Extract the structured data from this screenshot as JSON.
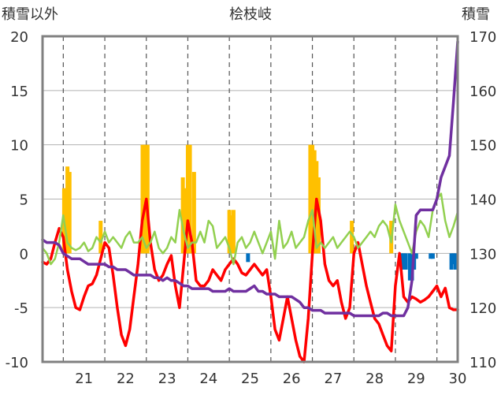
{
  "chart_data": {
    "type": "line",
    "title": "桧枝岐",
    "left_axis_label": "積雪以外",
    "right_axis_label": "積雪",
    "x_range": [
      20.5,
      30.5
    ],
    "x_ticks": [
      "21",
      "22",
      "23",
      "24",
      "25",
      "26",
      "27",
      "28",
      "29",
      "30"
    ],
    "y_left_range": [
      -10,
      20
    ],
    "y_left_ticks": [
      "20",
      "15",
      "10",
      "5",
      "0",
      "-5",
      "-10"
    ],
    "y_right_range": [
      110,
      170
    ],
    "y_right_ticks": [
      "170",
      "160",
      "150",
      "140",
      "130",
      "120",
      "110"
    ],
    "grid": true,
    "colors": {
      "red": "#ff0000",
      "green": "#92d050",
      "purple": "#7030a0",
      "orange": "#ffc000",
      "blue": "#0070c0"
    },
    "series": [
      {
        "color": "red",
        "axis": "left",
        "x": [
          20.5,
          20.6,
          20.7,
          20.8,
          20.9,
          21.0,
          21.1,
          21.2,
          21.3,
          21.4,
          21.5,
          21.6,
          21.7,
          21.8,
          21.9,
          22.0,
          22.1,
          22.2,
          22.3,
          22.4,
          22.5,
          22.6,
          22.7,
          22.8,
          22.9,
          23.0,
          23.1,
          23.2,
          23.3,
          23.4,
          23.5,
          23.6,
          23.7,
          23.8,
          23.9,
          24.0,
          24.1,
          24.2,
          24.3,
          24.4,
          24.5,
          24.6,
          24.7,
          24.8,
          24.9,
          25.0,
          25.1,
          25.2,
          25.3,
          25.4,
          25.5,
          25.6,
          25.7,
          25.8,
          25.9,
          26.0,
          26.1,
          26.2,
          26.3,
          26.4,
          26.5,
          26.6,
          26.7,
          26.8,
          26.9,
          27.0,
          27.1,
          27.2,
          27.3,
          27.4,
          27.5,
          27.6,
          27.7,
          27.8,
          27.9,
          28.0,
          28.1,
          28.2,
          28.3,
          28.4,
          28.5,
          28.6,
          28.7,
          28.8,
          28.9,
          29.0,
          29.1,
          29.2,
          29.3,
          29.4,
          29.5,
          29.6,
          29.7,
          29.8,
          29.9,
          30.0,
          30.1,
          30.2,
          30.3,
          30.4,
          30.5
        ],
        "y": [
          -0.8,
          -1,
          -0.5,
          1,
          2.3,
          1.5,
          -1.5,
          -3.5,
          -5,
          -5.2,
          -4,
          -3,
          -2.8,
          -2,
          -0.5,
          1,
          0.5,
          -2,
          -5,
          -7.5,
          -8.5,
          -7,
          -4,
          -1,
          3,
          5,
          1,
          -1.5,
          -2.5,
          -2,
          -1,
          -0.2,
          -3,
          -5,
          -1,
          3,
          1,
          -2.5,
          -3,
          -3,
          -2.5,
          -1.5,
          -2,
          -2.5,
          -1.5,
          -1,
          -0.5,
          -1,
          -1.8,
          -2,
          -1.5,
          -1,
          -1.5,
          -2,
          -1.5,
          -4,
          -7,
          -8,
          -6,
          -4,
          -6,
          -8,
          -9.5,
          -10,
          -6,
          0,
          5,
          3,
          -1,
          -2.5,
          -3,
          -2.5,
          -4.5,
          -6,
          -5,
          0,
          1,
          -1,
          -3,
          -4.5,
          -6,
          -6.5,
          -7.5,
          -8.5,
          -9,
          -3,
          0,
          -4,
          -4.5,
          -4,
          -4.2,
          -4.5,
          -4.3,
          -4,
          -3.5,
          -3,
          -4,
          -3.2,
          -5,
          -5.2,
          -5.2
        ]
      },
      {
        "color": "green",
        "axis": "left",
        "x": [
          20.5,
          20.6,
          20.7,
          20.8,
          20.9,
          21.0,
          21.1,
          21.2,
          21.3,
          21.4,
          21.5,
          21.6,
          21.7,
          21.8,
          21.9,
          22.0,
          22.1,
          22.2,
          22.3,
          22.4,
          22.5,
          22.6,
          22.7,
          22.8,
          22.9,
          23.0,
          23.1,
          23.2,
          23.3,
          23.4,
          23.5,
          23.6,
          23.7,
          23.8,
          23.9,
          24.0,
          24.1,
          24.2,
          24.3,
          24.4,
          24.5,
          24.6,
          24.7,
          24.8,
          24.9,
          25.0,
          25.1,
          25.2,
          25.3,
          25.4,
          25.5,
          25.6,
          25.7,
          25.8,
          25.9,
          26.0,
          26.1,
          26.2,
          26.3,
          26.4,
          26.5,
          26.6,
          26.7,
          26.8,
          26.9,
          27.0,
          27.1,
          27.2,
          27.3,
          27.4,
          27.5,
          27.6,
          27.7,
          27.8,
          27.9,
          28.0,
          28.1,
          28.2,
          28.3,
          28.4,
          28.5,
          28.6,
          28.7,
          28.8,
          28.9,
          29.0,
          29.1,
          29.2,
          29.3,
          29.4,
          29.5,
          29.6,
          29.7,
          29.8,
          29.9,
          30.0,
          30.1,
          30.2,
          30.3,
          30.4,
          30.5
        ],
        "y": [
          0.5,
          0,
          -1,
          -0.5,
          1,
          3.5,
          1,
          0.5,
          0.3,
          0.5,
          1,
          0.2,
          0.5,
          1.5,
          1,
          2,
          1,
          1.5,
          1,
          0.5,
          1.5,
          2,
          1,
          1,
          1.5,
          0.5,
          1,
          2,
          0.5,
          0,
          0.5,
          1.5,
          1,
          4,
          2,
          0.5,
          1,
          1,
          2,
          1,
          3,
          2.5,
          0.5,
          1,
          1.5,
          0.5,
          -1,
          1,
          1.5,
          0.5,
          1,
          2,
          1,
          0,
          1,
          2,
          -0.5,
          3,
          0.5,
          1,
          2,
          0.5,
          1,
          1.5,
          3,
          4,
          0.5,
          1,
          0.5,
          1,
          1.5,
          0.5,
          1,
          1.5,
          2,
          1.5,
          0.5,
          1,
          1.5,
          2,
          1.5,
          2.5,
          3,
          2.5,
          1,
          4.5,
          3,
          2,
          1,
          0,
          2,
          3,
          2.5,
          1.5,
          4,
          5,
          5.5,
          3,
          1.5,
          2.5,
          3.8
        ]
      },
      {
        "color": "purple",
        "axis": "right",
        "x": [
          20.5,
          20.6,
          20.7,
          20.8,
          20.9,
          21.0,
          21.1,
          21.2,
          21.3,
          21.4,
          21.5,
          21.6,
          21.7,
          21.8,
          21.9,
          22.0,
          22.1,
          22.2,
          22.3,
          22.4,
          22.5,
          22.6,
          22.7,
          22.8,
          22.9,
          23.0,
          23.1,
          23.2,
          23.3,
          23.4,
          23.5,
          23.6,
          23.7,
          23.8,
          23.9,
          24.0,
          24.1,
          24.2,
          24.3,
          24.4,
          24.5,
          24.6,
          24.7,
          24.8,
          24.9,
          25.0,
          25.1,
          25.2,
          25.3,
          25.4,
          25.5,
          25.6,
          25.7,
          25.8,
          25.9,
          26.0,
          26.1,
          26.2,
          26.3,
          26.4,
          26.5,
          26.6,
          26.7,
          26.8,
          26.9,
          27.0,
          27.1,
          27.2,
          27.3,
          27.4,
          27.5,
          27.6,
          27.7,
          27.8,
          27.9,
          28.0,
          28.1,
          28.2,
          28.3,
          28.4,
          28.5,
          28.6,
          28.7,
          28.8,
          28.9,
          29.0,
          29.1,
          29.2,
          29.3,
          29.4,
          29.5,
          29.6,
          29.7,
          29.8,
          29.9,
          30.0,
          30.1,
          30.2,
          30.3,
          30.4,
          30.5
        ],
        "y": [
          132.5,
          132,
          132,
          132,
          131.5,
          130,
          129.5,
          129,
          129,
          129,
          128.5,
          128,
          128,
          128,
          128,
          128,
          127.5,
          127.5,
          127,
          127,
          127,
          126.5,
          126,
          126,
          126,
          126,
          126,
          125.5,
          125.5,
          125,
          125.5,
          125,
          125,
          124.5,
          124,
          124,
          123.5,
          123.5,
          123.5,
          123.5,
          123.5,
          123,
          123,
          123,
          123,
          123.5,
          123,
          123,
          123,
          123,
          123.5,
          124,
          123,
          123,
          122.5,
          122.5,
          122.5,
          122,
          122,
          122,
          122,
          121.5,
          121,
          120,
          120,
          119.5,
          119.5,
          119.5,
          119,
          119,
          119,
          119,
          119,
          119,
          119,
          118.5,
          118.5,
          118.5,
          118.5,
          118.5,
          118.5,
          118.5,
          119,
          119,
          118.5,
          118.5,
          118.5,
          118.5,
          120,
          125,
          137,
          138,
          138,
          138,
          138,
          140,
          144,
          146,
          148,
          158,
          169
        ]
      }
    ],
    "bars": [
      {
        "color": "orange",
        "axis": "left",
        "x": [
          21.02,
          21.1,
          21.15,
          21.9,
          22.91,
          22.97,
          23.03,
          23.88,
          23.95,
          24.0,
          24.05,
          24.15,
          25.0,
          25.05,
          25.1,
          26.95,
          27.0,
          27.05,
          27.1,
          27.15,
          27.95,
          28.9
        ],
        "values": [
          6,
          8,
          7.5,
          3,
          10,
          10,
          10,
          7,
          6,
          10,
          10,
          7.5,
          4,
          3.5,
          4,
          10,
          10,
          9.5,
          8.5,
          7,
          3,
          3
        ]
      },
      {
        "color": "blue",
        "axis": "left",
        "x": [
          25.45,
          29.15,
          29.2,
          29.25,
          29.35,
          29.4,
          29.45,
          29.5,
          29.85,
          29.9,
          30.35,
          30.4,
          30.45
        ],
        "values": [
          -0.8,
          -0.8,
          -1.5,
          -1.5,
          -2.5,
          -2.5,
          -1.5,
          -0.5,
          -0.5,
          -0.5,
          -1.5,
          -1,
          -1.5
        ]
      }
    ]
  }
}
